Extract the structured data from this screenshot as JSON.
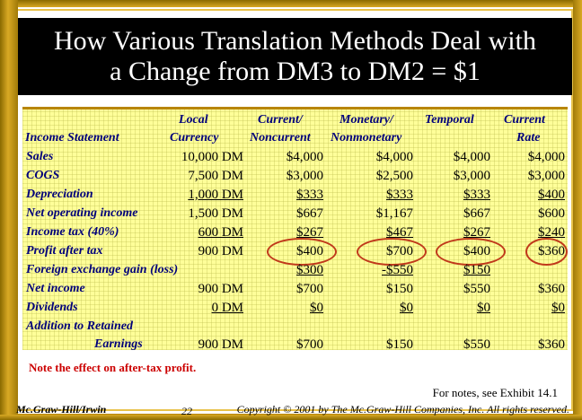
{
  "title": {
    "line1": "How Various Translation Methods Deal with",
    "line2": "a Change from DM3 to DM2 = $1"
  },
  "columns": {
    "income_statement": "Income Statement",
    "local_1": "Local",
    "local_2": "Currency",
    "current_noncurrent_1": "Current/",
    "current_noncurrent_2": "Noncurrent",
    "monetary_1": "Monetary/",
    "monetary_2": "Nonmonetary",
    "temporal_1": "Temporal",
    "current_rate_1": "Current",
    "current_rate_2": "Rate"
  },
  "rows": [
    {
      "label": "Sales",
      "local": "10,000 DM",
      "cn": "$4,000",
      "mn": "$4,000",
      "temporal": "$4,000",
      "rate": "$4,000"
    },
    {
      "label": "COGS",
      "local": "7,500 DM",
      "cn": "$3,000",
      "mn": "$2,500",
      "temporal": "$3,000",
      "rate": "$3,000"
    },
    {
      "label": "Depreciation",
      "local": "1,000 DM",
      "cn": "$333",
      "mn": "$333",
      "temporal": "$333",
      "rate": "$400"
    },
    {
      "label": "Net operating income",
      "local": "1,500 DM",
      "cn": "$667",
      "mn": "$1,167",
      "temporal": "$667",
      "rate": "$600"
    },
    {
      "label": "Income tax (40%)",
      "local": "600 DM",
      "cn": "$267",
      "mn": "$467",
      "temporal": "$267",
      "rate": "$240"
    },
    {
      "label": "Profit after tax",
      "local": "900 DM",
      "cn": "$400",
      "mn": "$700",
      "temporal": "$400",
      "rate": "$360"
    },
    {
      "label": "Foreign exchange gain (loss)",
      "local": "",
      "cn": "$300",
      "mn": "-$550",
      "temporal": "$150",
      "rate": ""
    },
    {
      "label": "Net income",
      "local": "900 DM",
      "cn": "$700",
      "mn": "$150",
      "temporal": "$550",
      "rate": "$360"
    },
    {
      "label": "Dividends",
      "local": "0 DM",
      "cn": "$0",
      "mn": "$0",
      "temporal": "$0",
      "rate": "$0"
    },
    {
      "label": "Addition to Retained",
      "local": "",
      "cn": "",
      "mn": "",
      "temporal": "",
      "rate": ""
    },
    {
      "label": "Earnings",
      "local": "900 DM",
      "cn": "$700",
      "mn": "$150",
      "temporal": "$550",
      "rate": "$360"
    }
  ],
  "note": "Note the effect on after-tax profit.",
  "notes_ref": "For notes, see Exhibit 14.1",
  "footer": {
    "publisher": "Mc.Graw-Hill/Irwin",
    "page": "22",
    "copyright": "Copyright © 2001 by The Mc.Graw-Hill Companies, Inc.  All rights reserved."
  },
  "colors": {
    "frame": "#b8860b",
    "table_bg": "#ffff99",
    "label": "#00007a",
    "ring": "#c0391b",
    "note": "#cc0000"
  }
}
